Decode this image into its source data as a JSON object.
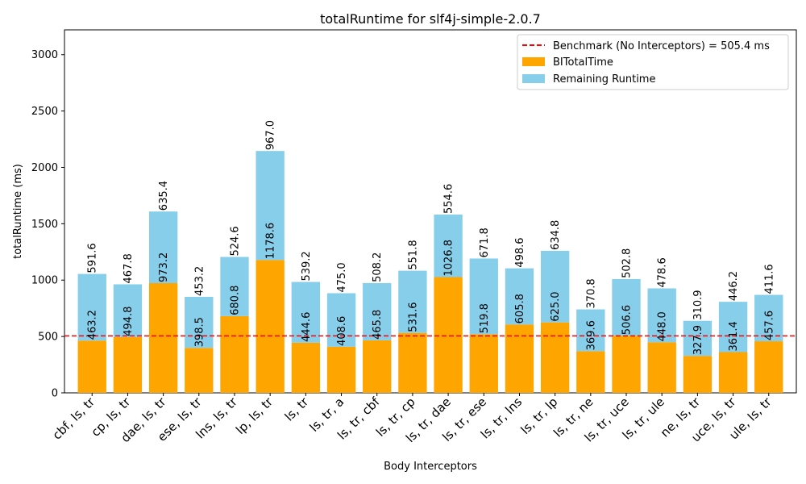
{
  "chart_data": {
    "type": "bar",
    "stacked": true,
    "title": "totalRuntime for slf4j-simple-2.0.7",
    "xlabel": "Body Interceptors",
    "ylabel": "totalRuntime (ms)",
    "ylim": [
      0,
      3220
    ],
    "yticks": [
      0,
      500,
      1000,
      1500,
      2000,
      2500,
      3000
    ],
    "grid": false,
    "legend_position": "top-right",
    "categories": [
      "cbf, ls, tr",
      "cp, ls, tr",
      "dae, ls, tr",
      "ese, ls, tr",
      "lns, ls, tr",
      "lp, ls, tr",
      "ls, tr",
      "ls, tr, a",
      "ls, tr, cbf",
      "ls, tr, cp",
      "ls, tr, dae",
      "ls, tr, ese",
      "ls, tr, lns",
      "ls, tr, lp",
      "ls, tr, ne",
      "ls, tr, uce",
      "ls, tr, ule",
      "ne, ls, tr",
      "uce, ls, tr",
      "ule, ls, tr"
    ],
    "series": [
      {
        "name": "BITotalTime",
        "color": "#ffa500",
        "values": [
          463.2,
          494.8,
          973.2,
          398.5,
          680.8,
          1178.6,
          444.6,
          408.6,
          465.8,
          531.6,
          1026.8,
          519.8,
          605.8,
          625.0,
          369.6,
          506.6,
          448.0,
          327.9,
          361.4,
          457.6
        ],
        "labels": [
          "463.2",
          "494.8",
          "973.2",
          "398.5",
          "680.8",
          "1178.6",
          "444.6",
          "408.6",
          "465.8",
          "531.6",
          "1026.8",
          "519.8",
          "605.8",
          "625.0",
          "369.6",
          "506.6",
          "448.0",
          "327.9",
          "361.4",
          "457.6"
        ]
      },
      {
        "name": "Remaining Runtime",
        "color": "#87ceeb",
        "values": [
          591.6,
          467.8,
          635.4,
          453.2,
          524.6,
          967.0,
          539.2,
          475.0,
          508.2,
          551.8,
          554.6,
          671.8,
          498.6,
          634.8,
          370.8,
          502.8,
          478.6,
          310.9,
          446.2,
          411.6
        ],
        "labels": [
          "591.6",
          "467.8",
          "635.4",
          "453.2",
          "524.6",
          "967.0",
          "539.2",
          "475.0",
          "508.2",
          "551.8",
          "554.6",
          "671.8",
          "498.6",
          "634.8",
          "370.8",
          "502.8",
          "478.6",
          "310.9",
          "446.2",
          "411.6"
        ]
      }
    ],
    "benchmark": {
      "label": "Benchmark (No Interceptors) = 505.4 ms",
      "value": 505.4,
      "color": "#ff0000",
      "style": "dashed"
    }
  }
}
